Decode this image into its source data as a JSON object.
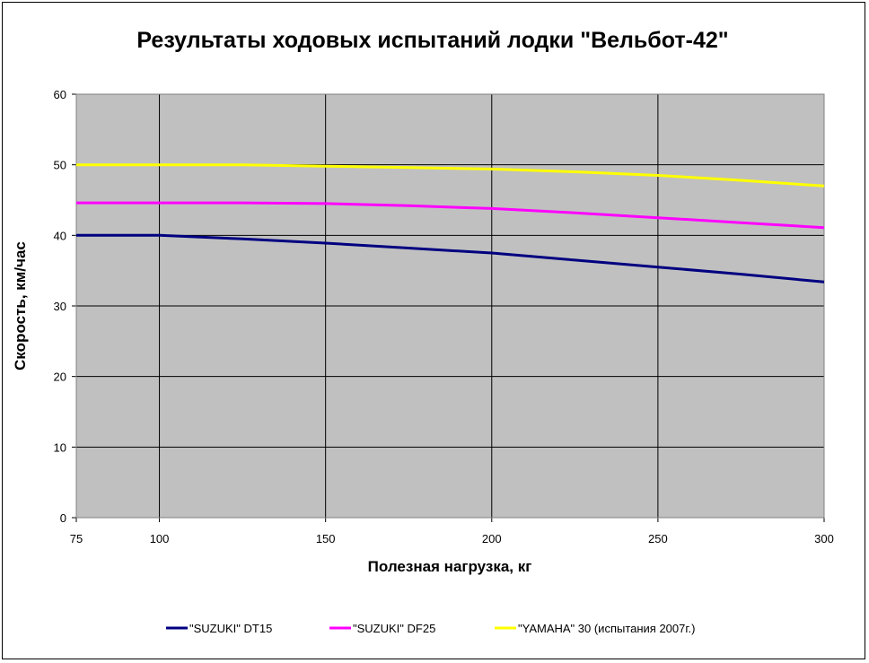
{
  "chart_data": {
    "type": "line",
    "title": "Результаты ходовых испытаний лодки \"Вельбот-42\"",
    "xlabel": "Полезная нагрузка, кг",
    "ylabel": "Скорость, км/час",
    "xlim": [
      75,
      300
    ],
    "ylim": [
      0,
      60
    ],
    "x_ticks": [
      "75",
      "100",
      "150",
      "200",
      "250",
      "300"
    ],
    "x_tick_values": [
      75,
      100,
      150,
      200,
      250,
      300
    ],
    "y_ticks": [
      "0",
      "10",
      "20",
      "30",
      "40",
      "50",
      "60"
    ],
    "y_tick_values": [
      0,
      10,
      20,
      30,
      40,
      50,
      60
    ],
    "grid": true,
    "plot_background": "#c0c0c0",
    "legend_position": "bottom",
    "series": [
      {
        "name": "\"SUZUKI\" DT15",
        "color": "#000080",
        "x": [
          75,
          100,
          125,
          150,
          175,
          200,
          225,
          250,
          275,
          300
        ],
        "y": [
          40,
          40,
          39.5,
          38.9,
          38.2,
          37.5,
          36.5,
          35.5,
          34.5,
          33.4
        ]
      },
      {
        "name": "\"SUZUKI\" DF25",
        "color": "#ff00ff",
        "x": [
          75,
          100,
          125,
          150,
          175,
          200,
          225,
          250,
          275,
          300
        ],
        "y": [
          44.6,
          44.6,
          44.6,
          44.5,
          44.2,
          43.8,
          43.2,
          42.5,
          41.8,
          41.1
        ]
      },
      {
        "name": "\"YAMAHA\" 30 (испытания 2007г.)",
        "color": "#ffff00",
        "x": [
          75,
          100,
          125,
          150,
          175,
          200,
          225,
          250,
          275,
          300
        ],
        "y": [
          50,
          50,
          50,
          49.8,
          49.6,
          49.4,
          49.0,
          48.5,
          47.8,
          47.0
        ]
      }
    ]
  }
}
